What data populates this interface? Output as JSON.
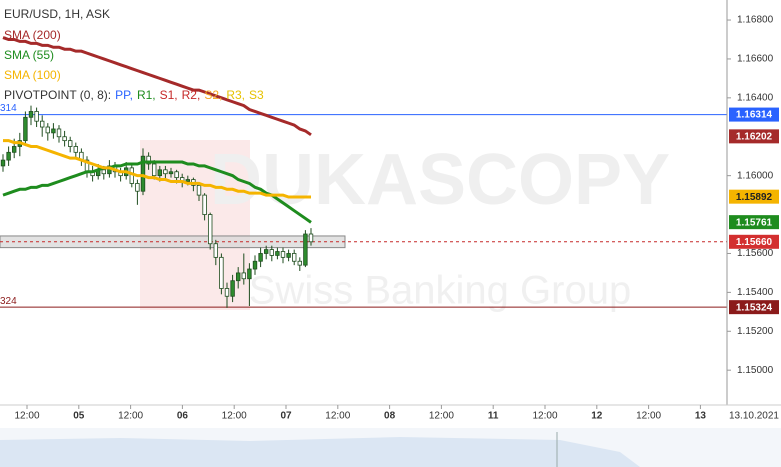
{
  "chart_data": {
    "type": "candlestick",
    "title": "EUR/USD, 1H, ASK",
    "ylim": [
      1.14821,
      1.16903
    ],
    "yticks": [
      {
        "value": 1.168,
        "label": "1.16800"
      },
      {
        "value": 1.166,
        "label": "1.16600"
      },
      {
        "value": 1.164,
        "label": "1.16400"
      },
      {
        "value": 1.16,
        "label": "1.16000"
      },
      {
        "value": 1.156,
        "label": "1.15600"
      },
      {
        "value": 1.154,
        "label": "1.15400"
      },
      {
        "value": 1.152,
        "label": "1.15200"
      },
      {
        "value": 1.15,
        "label": "1.15000"
      }
    ],
    "x_labels": [
      "12:00",
      "05",
      "12:00",
      "06",
      "12:00",
      "07",
      "12:00",
      "08",
      "12:00",
      "11",
      "12:00",
      "12",
      "12:00",
      "13"
    ],
    "date_label": "13.10.2021",
    "up_color": "#2e8b2e",
    "down_color": "#ffffff",
    "ohlc": [
      [
        1.1605,
        1.1611,
        1.1602,
        1.1608
      ],
      [
        1.1608,
        1.1615,
        1.1605,
        1.1612
      ],
      [
        1.1612,
        1.1619,
        1.1609,
        1.1615
      ],
      [
        1.1615,
        1.1622,
        1.161,
        1.1618
      ],
      [
        1.1618,
        1.1633,
        1.1616,
        1.163
      ],
      [
        1.163,
        1.1636,
        1.1626,
        1.1633
      ],
      [
        1.1633,
        1.1635,
        1.1625,
        1.1628
      ],
      [
        1.1628,
        1.1631,
        1.162,
        1.1625
      ],
      [
        1.1625,
        1.1627,
        1.1618,
        1.1622
      ],
      [
        1.1622,
        1.1627,
        1.1619,
        1.1624
      ],
      [
        1.1624,
        1.1626,
        1.1617,
        1.162
      ],
      [
        1.162,
        1.1623,
        1.1615,
        1.1618
      ],
      [
        1.1618,
        1.162,
        1.1612,
        1.1615
      ],
      [
        1.1615,
        1.1617,
        1.1609,
        1.1612
      ],
      [
        1.1612,
        1.1614,
        1.1605,
        1.1608
      ],
      [
        1.1608,
        1.161,
        1.1599,
        1.1602
      ],
      [
        1.1602,
        1.1605,
        1.1597,
        1.16
      ],
      [
        1.16,
        1.1606,
        1.1598,
        1.1603
      ],
      [
        1.1603,
        1.1605,
        1.1598,
        1.1601
      ],
      [
        1.1601,
        1.1608,
        1.1599,
        1.1605
      ],
      [
        1.1605,
        1.1607,
        1.1599,
        1.1602
      ],
      [
        1.1602,
        1.1604,
        1.1597,
        1.16
      ],
      [
        1.16,
        1.1607,
        1.1598,
        1.1604
      ],
      [
        1.1604,
        1.1606,
        1.1594,
        1.1596
      ],
      [
        1.1596,
        1.1598,
        1.1585,
        1.1592
      ],
      [
        1.1592,
        1.1614,
        1.159,
        1.161
      ],
      [
        1.161,
        1.1612,
        1.1603,
        1.1606
      ],
      [
        1.1606,
        1.1608,
        1.1598,
        1.16
      ],
      [
        1.16,
        1.1605,
        1.1597,
        1.1603
      ],
      [
        1.1603,
        1.1605,
        1.1598,
        1.1601
      ],
      [
        1.1601,
        1.1604,
        1.1599,
        1.1602
      ],
      [
        1.1602,
        1.1603,
        1.1596,
        1.1599
      ],
      [
        1.1599,
        1.1601,
        1.1594,
        1.1597
      ],
      [
        1.1597,
        1.16,
        1.1595,
        1.1598
      ],
      [
        1.1598,
        1.1599,
        1.1592,
        1.1595
      ],
      [
        1.1595,
        1.1596,
        1.1587,
        1.159
      ],
      [
        1.159,
        1.1591,
        1.1577,
        1.158
      ],
      [
        1.158,
        1.1581,
        1.1562,
        1.1565
      ],
      [
        1.1565,
        1.1567,
        1.1554,
        1.1558
      ],
      [
        1.1558,
        1.156,
        1.1539,
        1.1542
      ],
      [
        1.1542,
        1.1545,
        1.1532,
        1.1538
      ],
      [
        1.1538,
        1.1549,
        1.1535,
        1.1546
      ],
      [
        1.1546,
        1.1553,
        1.1542,
        1.155
      ],
      [
        1.155,
        1.156,
        1.1544,
        1.1547
      ],
      [
        1.1547,
        1.1555,
        1.1533,
        1.1552
      ],
      [
        1.1552,
        1.1559,
        1.1549,
        1.1556
      ],
      [
        1.1556,
        1.1563,
        1.1553,
        1.156
      ],
      [
        1.156,
        1.1564,
        1.1557,
        1.1562
      ],
      [
        1.1562,
        1.1564,
        1.1556,
        1.1559
      ],
      [
        1.1559,
        1.1563,
        1.1557,
        1.1561
      ],
      [
        1.1561,
        1.1563,
        1.1555,
        1.1558
      ],
      [
        1.1558,
        1.1562,
        1.1556,
        1.156
      ],
      [
        1.156,
        1.1562,
        1.1554,
        1.1556
      ],
      [
        1.1556,
        1.1558,
        1.1551,
        1.1554
      ],
      [
        1.1554,
        1.1572,
        1.1553,
        1.157
      ],
      [
        1.157,
        1.1573,
        1.1564,
        1.1566
      ]
    ],
    "indicators": [
      {
        "name": "SMA (200)",
        "color": "#a52a2a",
        "values": [
          1.1671,
          1.167,
          1.167,
          1.1669,
          1.1669,
          1.1668,
          1.1668,
          1.1667,
          1.1667,
          1.1666,
          1.1666,
          1.1665,
          1.1665,
          1.1664,
          1.1664,
          1.1663,
          1.1662,
          1.1661,
          1.166,
          1.1659,
          1.1658,
          1.1657,
          1.1656,
          1.1655,
          1.1654,
          1.1653,
          1.1652,
          1.1651,
          1.165,
          1.1649,
          1.1648,
          1.1647,
          1.1646,
          1.1645,
          1.1644,
          1.1644,
          1.1643,
          1.1642,
          1.1641,
          1.164,
          1.1639,
          1.1638,
          1.1637,
          1.1636,
          1.1634,
          1.1633,
          1.1632,
          1.1631,
          1.163,
          1.1629,
          1.1628,
          1.1627,
          1.1626,
          1.1624,
          1.1623,
          1.1621
        ]
      },
      {
        "name": "SMA (55)",
        "color": "#1e8c1e",
        "values": [
          1.159,
          1.1591,
          1.1592,
          1.1593,
          1.1593,
          1.1594,
          1.1594,
          1.1595,
          1.1595,
          1.1596,
          1.1597,
          1.1598,
          1.1599,
          1.16,
          1.1601,
          1.1602,
          1.1602,
          1.1603,
          1.1604,
          1.1604,
          1.1605,
          1.1605,
          1.1606,
          1.1606,
          1.1606,
          1.1607,
          1.1607,
          1.1607,
          1.1607,
          1.1607,
          1.1607,
          1.1607,
          1.1607,
          1.1606,
          1.1606,
          1.1605,
          1.1605,
          1.1604,
          1.1603,
          1.1602,
          1.1601,
          1.16,
          1.1598,
          1.1597,
          1.1596,
          1.1594,
          1.1593,
          1.1591,
          1.159,
          1.1588,
          1.1586,
          1.1584,
          1.1582,
          1.158,
          1.1578,
          1.1576
        ]
      },
      {
        "name": "SMA (100)",
        "color": "#f5b400",
        "values": [
          1.1618,
          1.1618,
          1.1617,
          1.1617,
          1.1616,
          1.1615,
          1.1615,
          1.1614,
          1.1613,
          1.1612,
          1.1611,
          1.161,
          1.1609,
          1.1609,
          1.1608,
          1.1607,
          1.1606,
          1.1605,
          1.1604,
          1.1604,
          1.1603,
          1.1602,
          1.1602,
          1.1601,
          1.16,
          1.16,
          1.1599,
          1.1599,
          1.1598,
          1.1598,
          1.1597,
          1.1597,
          1.1597,
          1.1596,
          1.1596,
          1.1596,
          1.1595,
          1.1595,
          1.1594,
          1.1594,
          1.1593,
          1.1593,
          1.1592,
          1.1592,
          1.1591,
          1.1591,
          1.1591,
          1.159,
          1.159,
          1.159,
          1.159,
          1.1589,
          1.1589,
          1.1589,
          1.1589,
          1.1589
        ]
      }
    ],
    "pivot": {
      "label": "PIVOTPOINT (0, 8):",
      "parts": [
        {
          "text": "PP,",
          "color": "#2962ff"
        },
        {
          "text": "R1,",
          "color": "#1e8c1e"
        },
        {
          "text": "S1,",
          "color": "#c62828"
        },
        {
          "text": "R2,",
          "color": "#c62828"
        },
        {
          "text": "S2,",
          "color": "#f5a623"
        },
        {
          "text": "R3,",
          "color": "#e6c200"
        },
        {
          "text": "S3",
          "color": "#e6c200"
        }
      ]
    },
    "pivot_zone": [
      1.1563,
      1.1569
    ],
    "levels": [
      {
        "value": 1.16314,
        "color": "#2962ff",
        "style": "solid",
        "left_label": "314"
      },
      {
        "value": 1.15324,
        "color": "#8b1a1a",
        "style": "solid",
        "left_label": "324"
      },
      {
        "value": 1.1566,
        "color": "#c62828",
        "style": "dashed"
      }
    ],
    "tags": [
      {
        "value": 1.16314,
        "label": "1.16314",
        "color": "#2962ff"
      },
      {
        "value": 1.16202,
        "label": "1.16202",
        "color": "#a52a2a"
      },
      {
        "value": 1.15892,
        "label": "1.15892",
        "color": "#f5b400"
      },
      {
        "value": 1.15761,
        "label": "1.15761",
        "color": "#1e8c1e"
      },
      {
        "value": 1.1566,
        "label": "1.15660",
        "color": "#d32f2f"
      },
      {
        "value": 1.15324,
        "label": "1.15324",
        "color": "#8b1a1a"
      }
    ],
    "watermark": [
      "DUKASCOPY",
      "Swiss Banking Group"
    ]
  }
}
